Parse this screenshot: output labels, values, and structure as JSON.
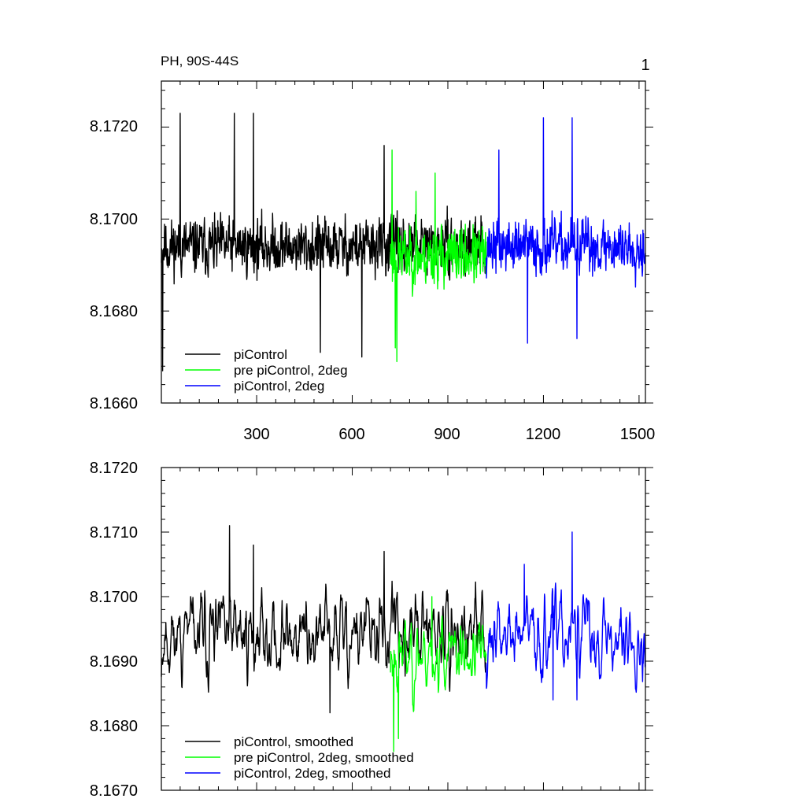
{
  "chart_data": [
    {
      "type": "line",
      "title_left": "PH, 90S-44S",
      "title_right": "1",
      "xlim": [
        1,
        1520
      ],
      "ylim": [
        8.166,
        8.173
      ],
      "xticks": [
        300,
        600,
        900,
        1200,
        1500
      ],
      "xtick_labels": [
        "300",
        "600",
        "900",
        "1200",
        "1500"
      ],
      "yticks": [
        8.166,
        8.168,
        8.17,
        8.172
      ],
      "ytick_labels": [
        "8.1660",
        "8.1680",
        "8.1700",
        "8.1720"
      ],
      "legend": {
        "placement": "bottom-left",
        "entries": [
          "piControl",
          "pre piControl, 2deg",
          "piControl, 2deg"
        ]
      },
      "series": [
        {
          "name": "piControl",
          "color": "#000000",
          "x_range": [
            1,
            1020
          ],
          "mean": 8.1694,
          "noise": 0.0011,
          "smooth": 1,
          "seed": 11,
          "peaks": [
            [
              60,
              8.1723
            ],
            [
              230,
              8.1723
            ],
            [
              290,
              8.1723
            ],
            [
              500,
              8.1671
            ],
            [
              630,
              8.167
            ],
            [
              700,
              8.1716
            ],
            [
              5,
              8.1667
            ]
          ]
        },
        {
          "name": "pre piControl, 2deg",
          "color": "#00ff00",
          "x_range": [
            720,
            1020
          ],
          "mean": 8.1692,
          "noise": 0.0011,
          "smooth": 1,
          "seed": 23,
          "peaks": [
            [
              725,
              8.1715
            ],
            [
              735,
              8.1672
            ],
            [
              740,
              8.1669
            ],
            [
              800,
              8.1706
            ],
            [
              860,
              8.171
            ]
          ]
        },
        {
          "name": "piControl, 2deg",
          "color": "#0000ff",
          "x_range": [
            1020,
            1520
          ],
          "mean": 8.1694,
          "noise": 0.0011,
          "smooth": 1,
          "seed": 37,
          "peaks": [
            [
              1200,
              8.1722
            ],
            [
              1290,
              8.1722
            ],
            [
              1150,
              8.1673
            ],
            [
              1305,
              8.1674
            ],
            [
              1060,
              8.1715
            ]
          ]
        }
      ]
    },
    {
      "type": "line",
      "xlim": [
        1,
        1520
      ],
      "ylim": [
        8.167,
        8.172
      ],
      "xticks": [
        300,
        600,
        900,
        1200,
        1500
      ],
      "yticks": [
        8.167,
        8.168,
        8.169,
        8.17,
        8.171,
        8.172
      ],
      "ytick_labels": [
        "8.1670",
        "8.1680",
        "8.1690",
        "8.1700",
        "8.1710",
        "8.1720"
      ],
      "legend": {
        "placement": "bottom-left",
        "entries": [
          "piControl, smoothed",
          "pre piControl, 2deg, smoothed",
          "piControl, 2deg, smoothed"
        ]
      },
      "series": [
        {
          "name": "piControl, smoothed",
          "color": "#000000",
          "x_range": [
            1,
            1020
          ],
          "mean": 8.1694,
          "noise": 0.0011,
          "smooth": 5,
          "seed": 11,
          "peaks": [
            [
              215,
              8.1711
            ],
            [
              290,
              8.1708
            ],
            [
              530,
              8.1682
            ],
            [
              700,
              8.1707
            ]
          ]
        },
        {
          "name": "pre piControl, 2deg, smoothed",
          "color": "#00ff00",
          "x_range": [
            720,
            1020
          ],
          "mean": 8.1691,
          "noise": 0.0011,
          "smooth": 5,
          "seed": 23,
          "peaks": [
            [
              730,
              8.1676
            ],
            [
              745,
              8.1678
            ],
            [
              850,
              8.17
            ]
          ]
        },
        {
          "name": "piControl, 2deg, smoothed",
          "color": "#0000ff",
          "x_range": [
            1020,
            1520
          ],
          "mean": 8.1694,
          "noise": 0.0011,
          "smooth": 5,
          "seed": 37,
          "peaks": [
            [
              1290,
              8.171
            ],
            [
              1140,
              8.1705
            ],
            [
              1230,
              8.1684
            ],
            [
              1305,
              8.1684
            ]
          ]
        }
      ]
    }
  ]
}
